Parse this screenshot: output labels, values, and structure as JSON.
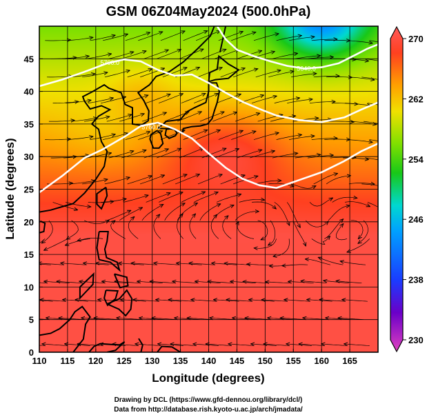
{
  "chart_data": {
    "type": "heatmap",
    "title": "GSM 06Z04May2024 (500.0hPa)",
    "xlabel": "Longitude (degrees)",
    "ylabel": "Latitude  (degrees)",
    "xlim": [
      110,
      170
    ],
    "ylim": [
      0,
      50
    ],
    "x_ticks": [
      110,
      115,
      120,
      125,
      130,
      135,
      140,
      145,
      150,
      155,
      160,
      165
    ],
    "y_ticks": [
      0,
      5,
      10,
      15,
      20,
      25,
      30,
      35,
      40,
      45
    ],
    "grid": true,
    "colorbar": {
      "min": 230,
      "max": 270,
      "ticks": [
        230,
        238,
        246,
        254,
        262,
        270
      ],
      "colors": [
        "#e040c0",
        "#6a00c8",
        "#1a3cff",
        "#00a0ff",
        "#00d8d0",
        "#18c818",
        "#80e000",
        "#f0e000",
        "#ffa000",
        "#ff4020",
        "#ff5a5a"
      ]
    },
    "contours": [
      {
        "label": "5760.0",
        "points": [
          [
            110,
            24.5
          ],
          [
            114,
            27
          ],
          [
            118,
            29.8
          ],
          [
            121,
            31
          ],
          [
            125,
            33
          ],
          [
            128,
            34.7
          ],
          [
            131,
            35.2
          ],
          [
            134,
            34.2
          ],
          [
            137,
            32.8
          ],
          [
            140,
            30.5
          ],
          [
            143,
            28.3
          ],
          [
            146,
            26.6
          ],
          [
            149,
            25.6
          ],
          [
            152,
            25.2
          ],
          [
            156,
            26.4
          ],
          [
            160,
            27.6
          ],
          [
            164,
            29.3
          ],
          [
            167,
            30.8
          ],
          [
            170,
            32
          ]
        ]
      },
      {
        "label": "5700.0",
        "points": [
          [
            110,
            40.8
          ],
          [
            114,
            41.8
          ],
          [
            118,
            43
          ],
          [
            122,
            44.3
          ],
          [
            125,
            44.9
          ],
          [
            128,
            44.6
          ],
          [
            131,
            43.3
          ],
          [
            134,
            42.4
          ],
          [
            137,
            42.6
          ],
          [
            140,
            41.3
          ],
          [
            143,
            39.8
          ],
          [
            146,
            38.4
          ],
          [
            149,
            37.3
          ],
          [
            152,
            36.3
          ],
          [
            156,
            35.6
          ],
          [
            160,
            35.3
          ],
          [
            164,
            36
          ],
          [
            167,
            37.2
          ],
          [
            170,
            38.3
          ]
        ]
      },
      {
        "label": "5640.0",
        "points": [
          [
            141.5,
            50
          ],
          [
            143,
            48
          ],
          [
            145,
            46.4
          ],
          [
            148,
            45.4
          ],
          [
            151,
            44.6
          ],
          [
            154,
            43.9
          ],
          [
            157,
            43.5
          ],
          [
            160,
            43.7
          ],
          [
            163,
            44.3
          ],
          [
            166,
            45.6
          ],
          [
            168,
            46.5
          ],
          [
            170,
            47.2
          ]
        ]
      }
    ],
    "contour_label_positions": [
      [
        129.8,
        34.2
      ],
      [
        122.5,
        44.1
      ],
      [
        157.3,
        43.2
      ]
    ],
    "credits": [
      "Drawing by DCL (https://www.gfd-dennou.org/library/dcl/)",
      "Data from http://database.rish.kyoto-u.ac.jp/arch/jmadata/"
    ]
  }
}
